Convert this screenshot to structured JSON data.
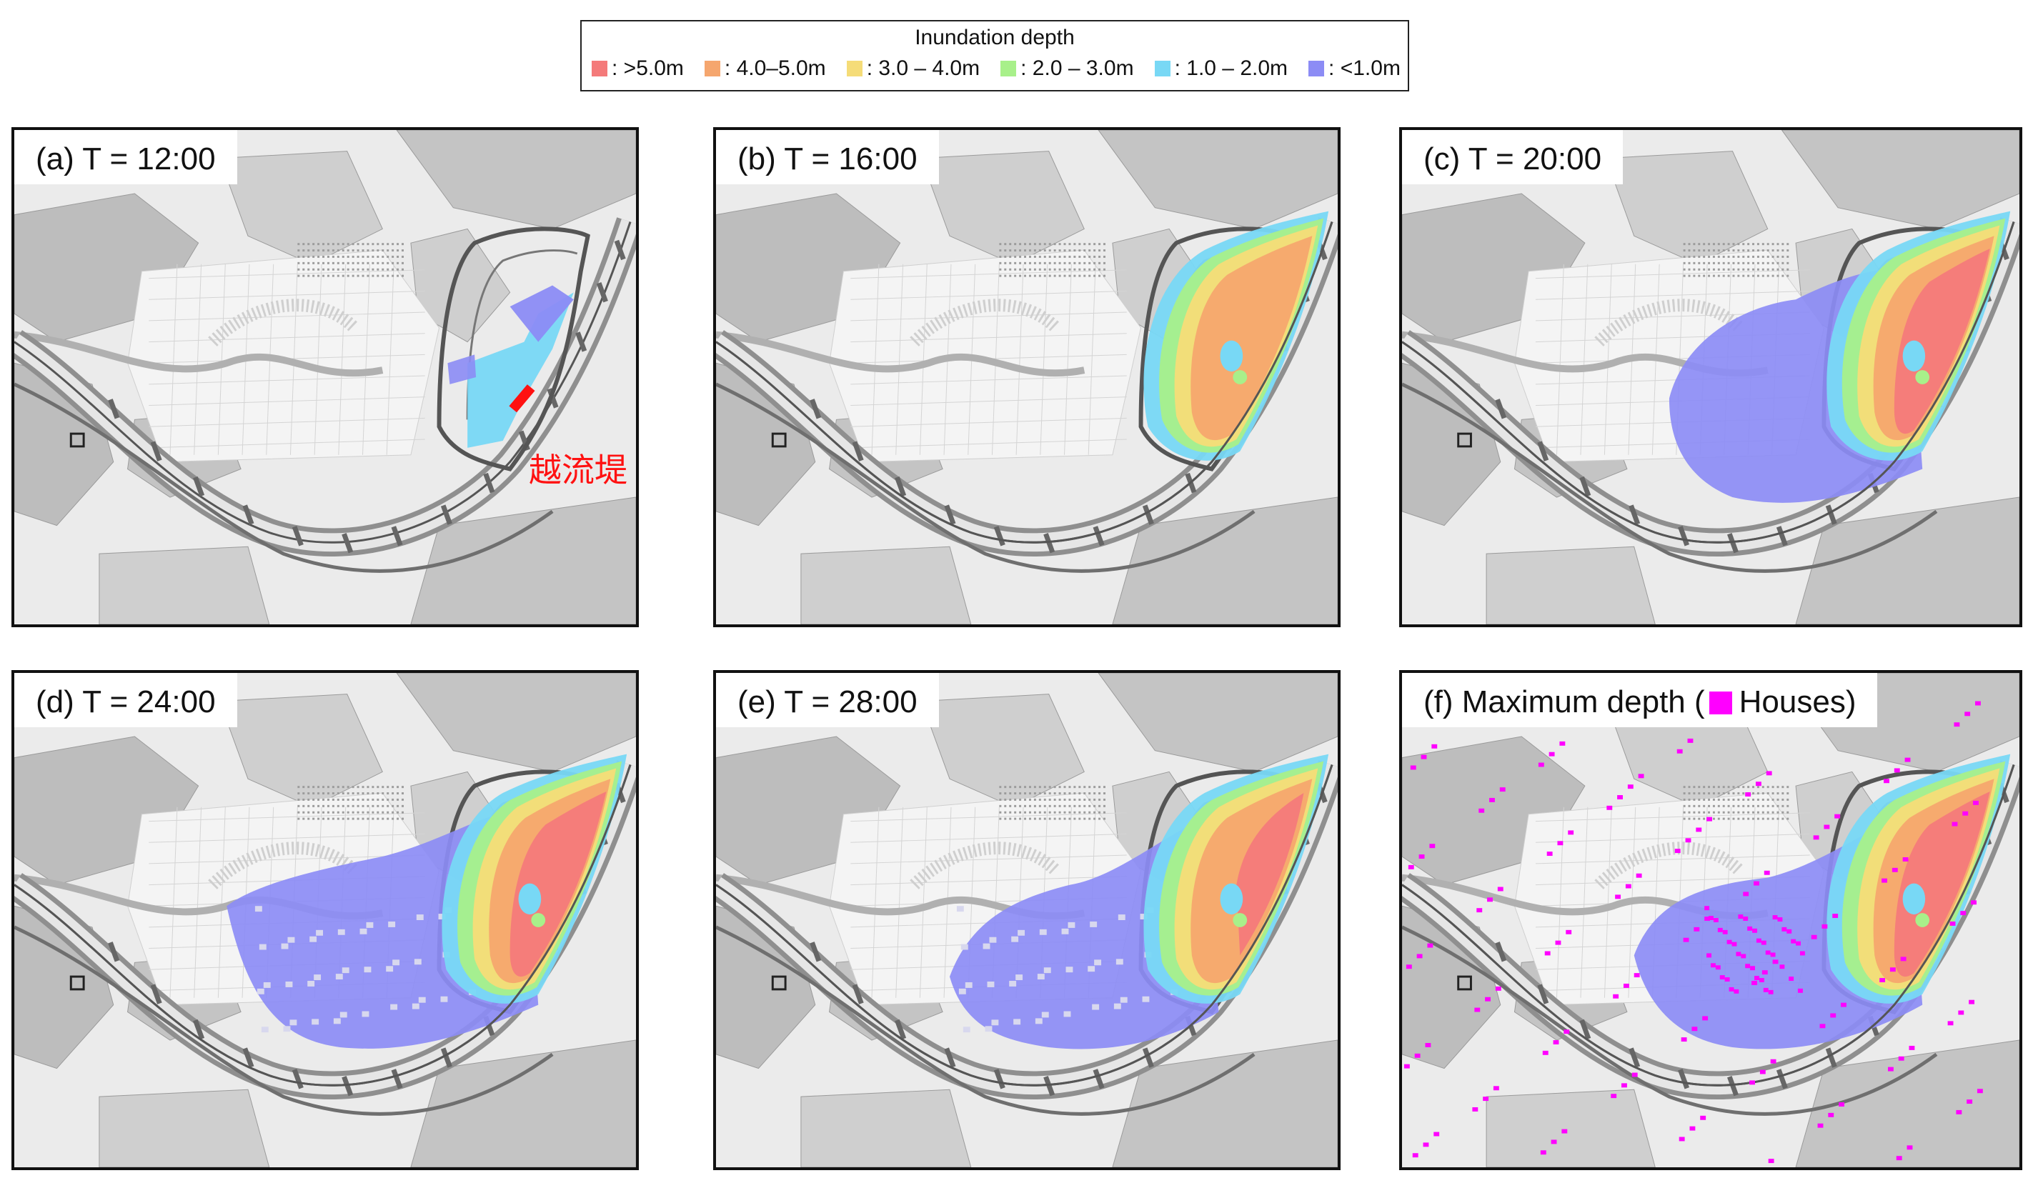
{
  "legend": {
    "title": "Inundation depth",
    "items": [
      {
        "label": ": >5.0m",
        "color": "#f47a7a"
      },
      {
        "label": ": 4.0–5.0m",
        "color": "#f5a66e"
      },
      {
        "label": ": 3.0 – 4.0m",
        "color": "#f5dc78"
      },
      {
        "label": ": 2.0 – 3.0m",
        "color": "#a8f08a"
      },
      {
        "label": ": 1.0 – 2.0m",
        "color": "#78d8f5"
      },
      {
        "label": ": <1.0m",
        "color": "#8c8cf5"
      }
    ]
  },
  "panels": [
    {
      "id": "a",
      "label": "(a) T = 12:00",
      "stage": 0
    },
    {
      "id": "b",
      "label": "(b) T = 16:00",
      "stage": 1
    },
    {
      "id": "c",
      "label": "(c) T = 20:00",
      "stage": 2
    },
    {
      "id": "d",
      "label": "(d) T = 24:00",
      "stage": 3
    },
    {
      "id": "e",
      "label": "(e) T = 28:00",
      "stage": 4
    },
    {
      "id": "f",
      "label_prefix": "(f) Maximum depth (",
      "label_houses": "Houses)",
      "stage": 5
    }
  ],
  "annotation": "越流堤",
  "colors": {
    "houses": "#ff00ff",
    "overflow_marker": "#ff1111"
  }
}
